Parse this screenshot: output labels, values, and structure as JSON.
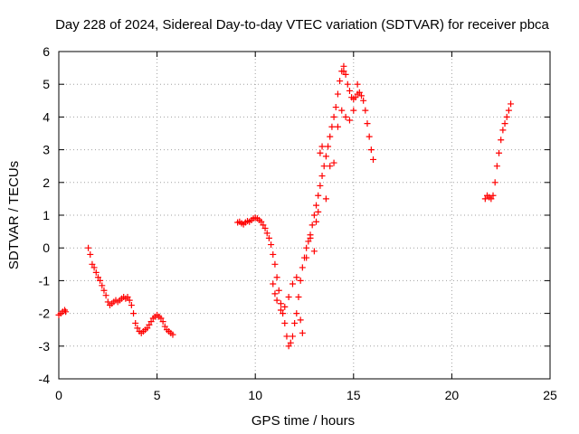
{
  "chart_data": {
    "type": "scatter",
    "title": "Day 228 of 2024, Sidereal Day-to-day VTEC variation (SDTVAR) for receiver pbca",
    "xlabel": "GPS time / hours",
    "ylabel": "SDTVAR / TECUs",
    "xlim": [
      0,
      25
    ],
    "ylim": [
      -4,
      6
    ],
    "x_ticks": [
      0,
      5,
      10,
      15,
      20,
      25
    ],
    "x_tick_labels": [
      "0",
      "5",
      "10",
      "15",
      "20",
      "25"
    ],
    "y_ticks": [
      -4,
      -3,
      -2,
      -1,
      0,
      1,
      2,
      3,
      4,
      5,
      6
    ],
    "y_tick_labels": [
      "-4",
      "-3",
      "-2",
      "-1",
      "0",
      "1",
      "2",
      "3",
      "4",
      "5",
      "6"
    ],
    "grid": true,
    "marker": "+",
    "color": "#ff0000",
    "series": [
      {
        "name": "segment-1",
        "x": [
          0.0,
          0.1,
          0.2,
          0.3,
          0.35
        ],
        "y": [
          -2.05,
          -2.0,
          -1.95,
          -1.9,
          -1.95
        ]
      },
      {
        "name": "segment-2",
        "x": [
          1.5,
          1.6,
          1.7,
          1.8,
          1.9,
          2.0,
          2.1,
          2.2,
          2.3,
          2.4,
          2.5,
          2.6,
          2.7,
          2.8,
          2.9,
          3.0,
          3.1,
          3.2,
          3.3,
          3.4,
          3.5,
          3.6,
          3.7,
          3.8,
          3.9,
          4.0,
          4.1,
          4.2,
          4.3,
          4.4,
          4.5,
          4.6,
          4.7,
          4.8,
          4.9,
          5.0,
          5.1,
          5.2,
          5.3,
          5.4,
          5.5,
          5.6,
          5.7,
          5.8
        ],
        "y": [
          0.0,
          -0.2,
          -0.5,
          -0.6,
          -0.75,
          -0.9,
          -1.0,
          -1.15,
          -1.3,
          -1.45,
          -1.65,
          -1.75,
          -1.7,
          -1.65,
          -1.6,
          -1.65,
          -1.6,
          -1.55,
          -1.5,
          -1.55,
          -1.5,
          -1.6,
          -1.75,
          -2.0,
          -2.3,
          -2.45,
          -2.55,
          -2.6,
          -2.55,
          -2.5,
          -2.45,
          -2.35,
          -2.25,
          -2.15,
          -2.1,
          -2.05,
          -2.1,
          -2.15,
          -2.25,
          -2.4,
          -2.5,
          -2.55,
          -2.6,
          -2.65
        ]
      },
      {
        "name": "segment-3",
        "x": [
          9.1,
          9.2,
          9.3,
          9.4,
          9.5,
          9.6,
          9.7,
          9.8,
          9.9,
          10.0,
          10.1,
          10.2,
          10.3,
          10.4,
          10.5,
          10.6,
          10.7,
          10.8,
          10.9,
          11.0,
          11.1,
          11.2,
          11.3,
          11.4,
          11.5,
          11.6,
          11.7,
          11.8,
          11.9,
          12.0,
          12.1,
          12.2,
          12.3,
          12.4,
          12.5,
          12.6,
          12.7,
          12.8,
          12.9,
          13.0,
          13.1,
          13.2,
          13.3,
          13.4,
          13.5,
          13.6,
          13.7,
          13.8,
          13.9,
          14.0,
          14.1,
          14.2,
          14.3,
          14.4,
          14.5,
          14.6,
          14.7,
          14.8,
          14.9,
          15.0,
          15.1,
          15.2,
          15.3,
          15.4,
          15.5,
          15.6,
          15.7,
          15.8,
          15.9,
          16.0
        ],
        "y": [
          0.78,
          0.8,
          0.75,
          0.72,
          0.78,
          0.82,
          0.8,
          0.85,
          0.9,
          0.92,
          0.9,
          0.85,
          0.8,
          0.7,
          0.6,
          0.45,
          0.3,
          0.1,
          -0.2,
          -0.5,
          -0.9,
          -1.3,
          -1.7,
          -2.0,
          -2.3,
          -2.7,
          -3.0,
          -2.9,
          -2.7,
          -2.3,
          -2.0,
          -1.5,
          -1.0,
          -0.6,
          -0.3,
          0.0,
          0.2,
          0.4,
          0.7,
          1.0,
          1.3,
          1.6,
          1.9,
          2.2,
          2.5,
          2.8,
          3.1,
          3.4,
          3.7,
          4.0,
          4.3,
          4.7,
          5.1,
          5.4,
          5.55,
          5.3,
          5.0,
          4.8,
          4.6,
          4.55,
          4.6,
          4.7,
          4.75,
          4.65,
          4.5,
          4.2,
          3.8,
          3.4,
          3.0,
          2.7
        ]
      },
      {
        "name": "segment-3-scatter",
        "x": [
          10.9,
          11.0,
          11.1,
          11.3,
          11.5,
          11.7,
          11.9,
          12.1,
          12.3,
          12.4,
          12.6,
          12.8,
          13.0,
          13.1,
          13.2,
          13.3,
          13.4,
          13.6,
          13.8,
          14.0,
          14.2,
          14.4,
          14.5,
          14.6,
          14.8,
          15.0,
          15.2
        ],
        "y": [
          -1.1,
          -1.4,
          -1.6,
          -1.9,
          -1.8,
          -1.5,
          -1.1,
          -0.9,
          -2.2,
          -2.6,
          -0.3,
          0.3,
          -0.1,
          0.8,
          1.1,
          2.9,
          3.1,
          1.5,
          2.5,
          2.6,
          3.7,
          4.2,
          5.4,
          4.0,
          3.9,
          4.2,
          5.0
        ]
      },
      {
        "name": "segment-4",
        "x": [
          21.7,
          21.8,
          21.9,
          22.0,
          22.1,
          22.2,
          22.3,
          22.4,
          22.5,
          22.6,
          22.7,
          22.8,
          22.9,
          23.0
        ],
        "y": [
          1.5,
          1.6,
          1.55,
          1.5,
          1.6,
          2.0,
          2.5,
          2.9,
          3.3,
          3.6,
          3.8,
          4.0,
          4.2,
          4.4
        ]
      }
    ]
  }
}
